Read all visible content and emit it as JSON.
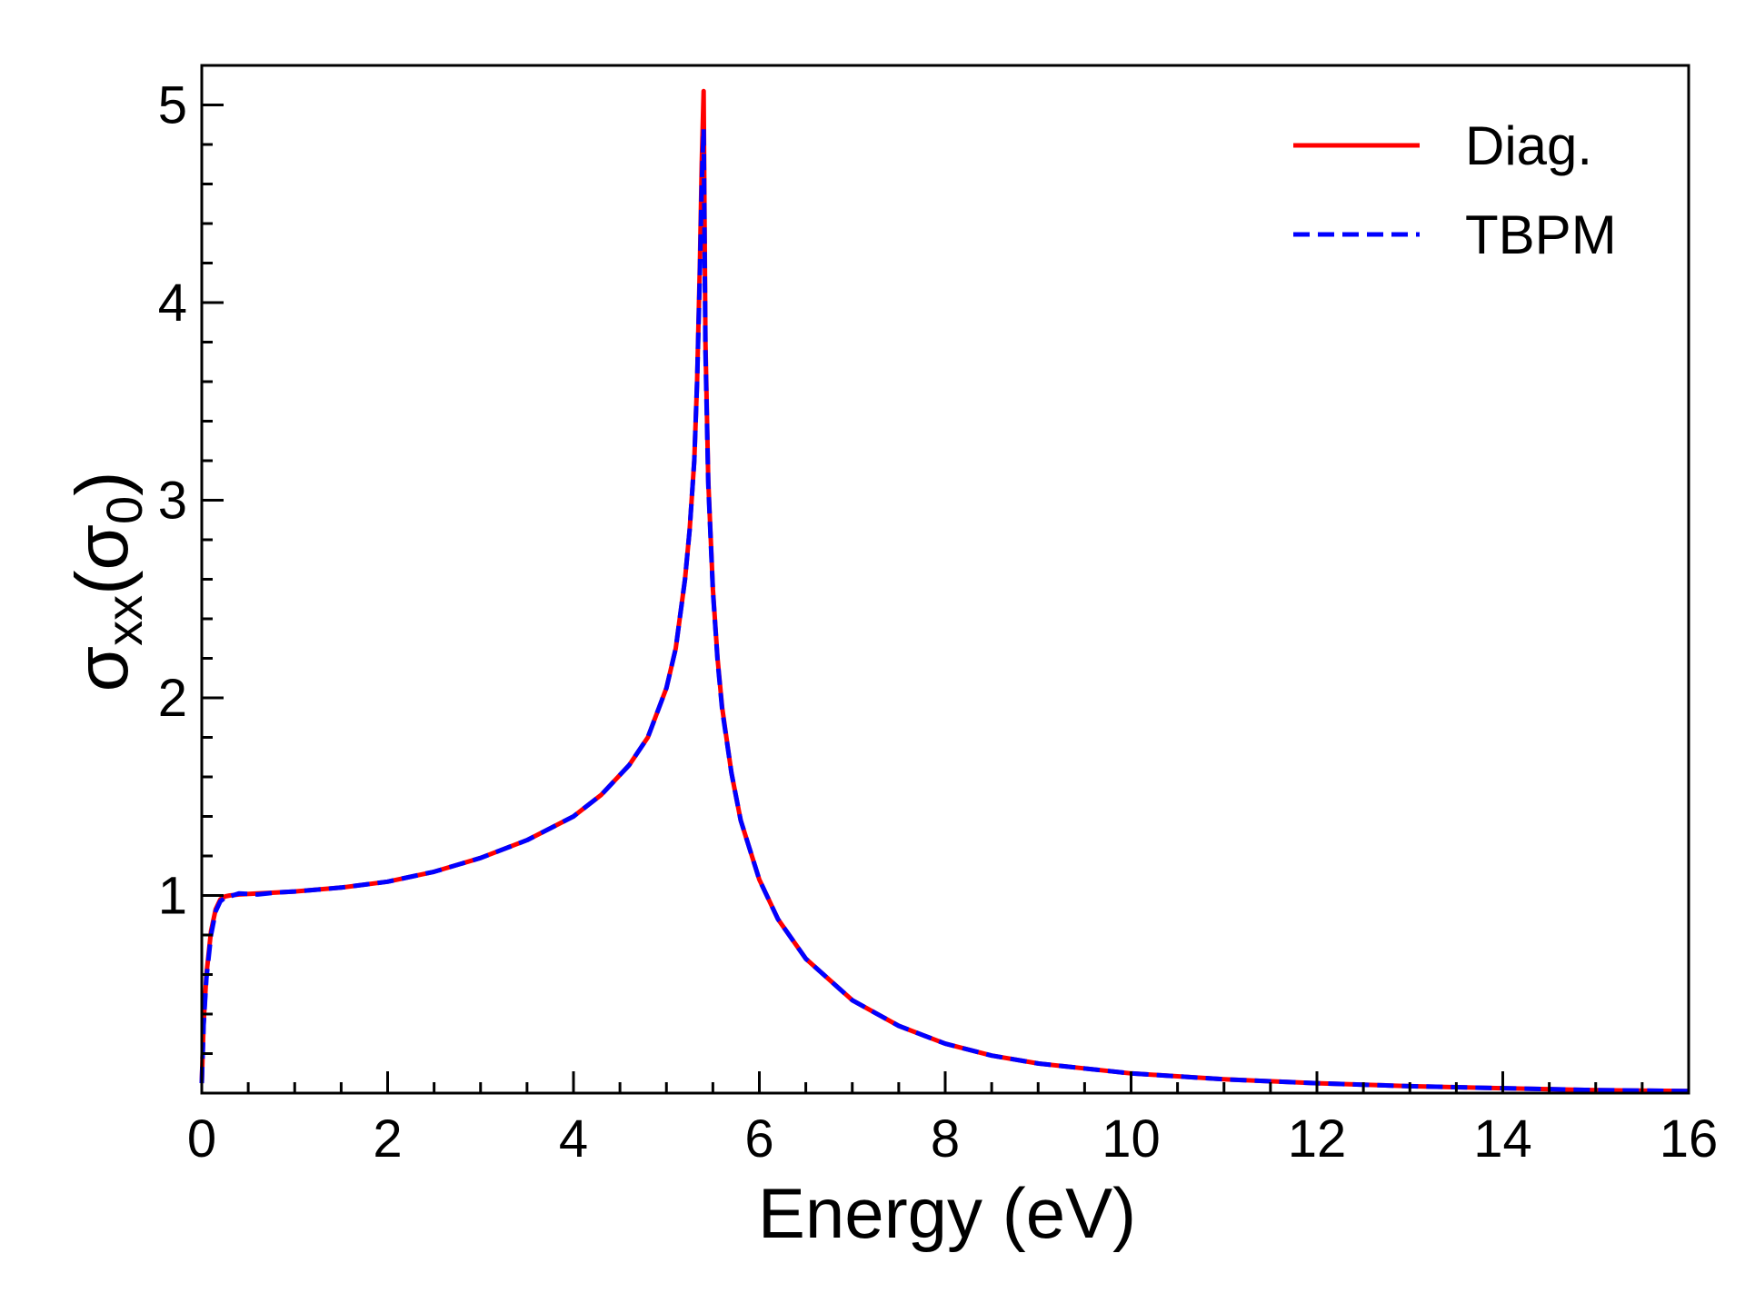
{
  "chart_data": {
    "type": "line",
    "title": "",
    "xlabel": "Energy (eV)",
    "ylabel": {
      "main": "σ",
      "sub": "xx",
      "open": "(",
      "inner": "σ",
      "inner_sub": "0",
      "close": ")"
    },
    "xlim": [
      0,
      16
    ],
    "ylim": [
      0,
      5.2
    ],
    "x_ticks": [
      0,
      2,
      4,
      6,
      8,
      10,
      12,
      14,
      16
    ],
    "x_tick_labels": [
      "0",
      "2",
      "4",
      "6",
      "8",
      "10",
      "12",
      "14",
      "16"
    ],
    "x_minor_step": 0.5,
    "y_ticks": [
      1,
      2,
      3,
      4,
      5
    ],
    "y_tick_labels": [
      "1",
      "2",
      "3",
      "4",
      "5"
    ],
    "y_minor_step": 0.2,
    "grid": false,
    "legend": "top-right",
    "series": [
      {
        "name": "Diag.",
        "color": "#ff0000",
        "style": "solid",
        "x": [
          0,
          0.02,
          0.05,
          0.1,
          0.15,
          0.2,
          0.25,
          0.3,
          0.4,
          0.6,
          0.8,
          1.0,
          1.5,
          2.0,
          2.5,
          3.0,
          3.5,
          4.0,
          4.3,
          4.6,
          4.8,
          5.0,
          5.1,
          5.2,
          5.25,
          5.3,
          5.33,
          5.36,
          5.38,
          5.4,
          5.42,
          5.45,
          5.5,
          5.55,
          5.6,
          5.7,
          5.8,
          6.0,
          6.2,
          6.5,
          7.0,
          7.5,
          8.0,
          8.5,
          9.0,
          10.0,
          11.0,
          12.0,
          13.0,
          14.0,
          15.0,
          16.0
        ],
        "y": [
          0.05,
          0.35,
          0.6,
          0.82,
          0.93,
          0.98,
          0.995,
          1.0,
          1.005,
          1.01,
          1.015,
          1.02,
          1.04,
          1.07,
          1.12,
          1.19,
          1.28,
          1.4,
          1.51,
          1.66,
          1.8,
          2.05,
          2.25,
          2.6,
          2.85,
          3.2,
          3.6,
          4.2,
          4.7,
          5.07,
          3.8,
          3.1,
          2.55,
          2.2,
          1.95,
          1.62,
          1.38,
          1.08,
          0.88,
          0.68,
          0.47,
          0.34,
          0.25,
          0.19,
          0.15,
          0.1,
          0.07,
          0.05,
          0.035,
          0.025,
          0.015,
          0.01
        ]
      },
      {
        "name": "TBPM",
        "color": "#0000ff",
        "style": "dashed",
        "x": [
          0,
          0.02,
          0.05,
          0.1,
          0.15,
          0.2,
          0.25,
          0.3,
          0.4,
          0.6,
          0.8,
          1.0,
          1.5,
          2.0,
          2.5,
          3.0,
          3.5,
          4.0,
          4.3,
          4.6,
          4.8,
          5.0,
          5.1,
          5.2,
          5.25,
          5.3,
          5.33,
          5.36,
          5.38,
          5.4,
          5.42,
          5.45,
          5.5,
          5.55,
          5.6,
          5.7,
          5.8,
          6.0,
          6.2,
          6.5,
          7.0,
          7.5,
          8.0,
          8.5,
          9.0,
          10.0,
          11.0,
          12.0,
          13.0,
          14.0,
          15.0,
          16.0
        ],
        "y": [
          0.05,
          0.34,
          0.58,
          0.8,
          0.92,
          0.97,
          0.99,
          0.995,
          1.01,
          1.005,
          1.015,
          1.02,
          1.04,
          1.07,
          1.12,
          1.19,
          1.28,
          1.4,
          1.51,
          1.66,
          1.8,
          2.05,
          2.25,
          2.6,
          2.85,
          3.2,
          3.6,
          4.15,
          4.6,
          4.88,
          3.75,
          3.08,
          2.54,
          2.19,
          1.94,
          1.62,
          1.38,
          1.08,
          0.88,
          0.68,
          0.47,
          0.34,
          0.25,
          0.19,
          0.15,
          0.1,
          0.07,
          0.05,
          0.035,
          0.025,
          0.015,
          0.01
        ]
      }
    ]
  }
}
